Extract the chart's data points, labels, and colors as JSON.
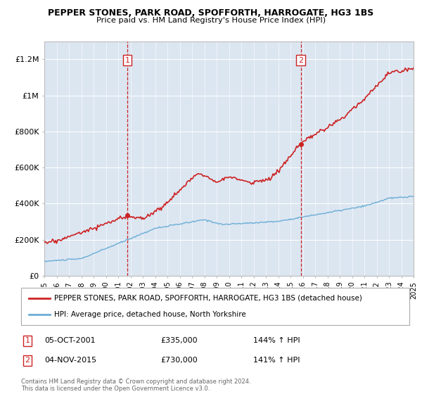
{
  "title": "PEPPER STONES, PARK ROAD, SPOFFORTH, HARROGATE, HG3 1BS",
  "subtitle": "Price paid vs. HM Land Registry's House Price Index (HPI)",
  "legend_line1": "PEPPER STONES, PARK ROAD, SPOFFORTH, HARROGATE, HG3 1BS (detached house)",
  "legend_line2": "HPI: Average price, detached house, North Yorkshire",
  "transaction1": {
    "label": "1",
    "date": "05-OCT-2001",
    "price": "£335,000",
    "hpi": "144% ↑ HPI",
    "year": 2001.75
  },
  "transaction2": {
    "label": "2",
    "date": "04-NOV-2015",
    "price": "£730,000",
    "hpi": "141% ↑ HPI",
    "year": 2015.83
  },
  "footer": "Contains HM Land Registry data © Crown copyright and database right 2024.\nThis data is licensed under the Open Government Licence v3.0.",
  "red_color": "#cc2222",
  "blue_color": "#6baed6",
  "background_color": "#dce6f1",
  "ylim": [
    0,
    1300000
  ],
  "yticks": [
    0,
    200000,
    400000,
    600000,
    800000,
    1000000,
    1200000
  ],
  "ytick_labels": [
    "£0",
    "£200K",
    "£400K",
    "£600K",
    "£800K",
    "£1M",
    "£1.2M"
  ],
  "xmin": 1995,
  "xmax": 2025
}
